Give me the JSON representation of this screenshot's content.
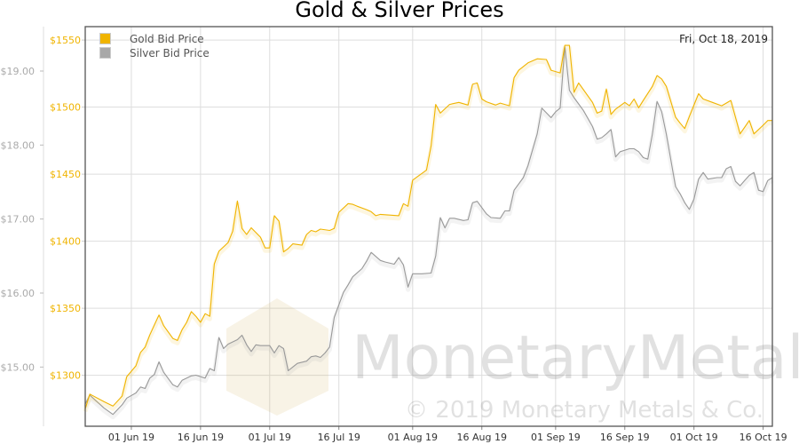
{
  "chart_data": {
    "type": "line",
    "title": "Gold & Silver Prices",
    "date_label": "Fri, Oct 18, 2019",
    "watermark": {
      "brand": "MonetaryMetals",
      "copyright": "© 2019 Monetary Metals & Co."
    },
    "xlim": [
      "2019-05-22",
      "2019-10-18"
    ],
    "x_ticks": [
      {
        "date": "2019-06-01",
        "label": "01 Jun 19"
      },
      {
        "date": "2019-06-16",
        "label": "16 Jun 19"
      },
      {
        "date": "2019-07-01",
        "label": "01 Jul 19"
      },
      {
        "date": "2019-07-16",
        "label": "16 Jul 19"
      },
      {
        "date": "2019-08-01",
        "label": "01 Aug 19"
      },
      {
        "date": "2019-08-16",
        "label": "16 Aug 19"
      },
      {
        "date": "2019-09-01",
        "label": "01 Sep 19"
      },
      {
        "date": "2019-09-16",
        "label": "16 Sep 19"
      },
      {
        "date": "2019-10-01",
        "label": "01 Oct 19"
      },
      {
        "date": "2019-10-16",
        "label": "16 Oct 19"
      }
    ],
    "gold_axis": {
      "ylim": [
        1262,
        1560
      ],
      "ticks": [
        1550,
        1500,
        1450,
        1400,
        1350,
        1300
      ],
      "labels": [
        "$1550",
        "$1500",
        "$1450",
        "$1400",
        "$1350",
        "$1300"
      ]
    },
    "silver_axis": {
      "ylim": [
        14.2,
        19.6
      ],
      "ticks": [
        19,
        18,
        17,
        16,
        15
      ],
      "labels": [
        "$19.00",
        "$18.00",
        "$17.00",
        "$16.00",
        "$15.00"
      ]
    },
    "grid": true,
    "legend_position": "top-left",
    "colors": {
      "gold": "#f0b400",
      "silver": "#a8a8a8"
    },
    "series": [
      {
        "name": "Gold Bid Price",
        "axis": "gold",
        "points": [
          [
            "2019-05-22",
            1275
          ],
          [
            "2019-05-23",
            1286
          ],
          [
            "2019-05-26",
            1280.5
          ],
          [
            "2019-05-28",
            1277
          ],
          [
            "2019-05-30",
            1284.5
          ],
          [
            "2019-05-31",
            1299
          ],
          [
            "2019-06-02",
            1307
          ],
          [
            "2019-06-03",
            1317
          ],
          [
            "2019-06-04",
            1321
          ],
          [
            "2019-06-05",
            1330
          ],
          [
            "2019-06-07",
            1345
          ],
          [
            "2019-06-08",
            1337
          ],
          [
            "2019-06-10",
            1327.5
          ],
          [
            "2019-06-11",
            1326
          ],
          [
            "2019-06-12",
            1334
          ],
          [
            "2019-06-13",
            1339.5
          ],
          [
            "2019-06-14",
            1347.5
          ],
          [
            "2019-06-15",
            1344
          ],
          [
            "2019-06-16",
            1339.5
          ],
          [
            "2019-06-17",
            1346
          ],
          [
            "2019-06-18",
            1344
          ],
          [
            "2019-06-19",
            1383
          ],
          [
            "2019-06-20",
            1392.5
          ],
          [
            "2019-06-22",
            1399
          ],
          [
            "2019-06-23",
            1407.5
          ],
          [
            "2019-06-24",
            1430
          ],
          [
            "2019-06-25",
            1409.5
          ],
          [
            "2019-06-26",
            1405
          ],
          [
            "2019-06-27",
            1410
          ],
          [
            "2019-06-29",
            1403
          ],
          [
            "2019-06-30",
            1395
          ],
          [
            "2019-07-01",
            1395
          ],
          [
            "2019-07-02",
            1419
          ],
          [
            "2019-07-03",
            1415
          ],
          [
            "2019-07-04",
            1392
          ],
          [
            "2019-07-05",
            1394.5
          ],
          [
            "2019-07-06",
            1398
          ],
          [
            "2019-07-08",
            1397
          ],
          [
            "2019-07-09",
            1405
          ],
          [
            "2019-07-10",
            1408
          ],
          [
            "2019-07-11",
            1407
          ],
          [
            "2019-07-12",
            1409
          ],
          [
            "2019-07-14",
            1408
          ],
          [
            "2019-07-15",
            1409.5
          ],
          [
            "2019-07-16",
            1421.5
          ],
          [
            "2019-07-18",
            1428
          ],
          [
            "2019-07-19",
            1427.5
          ],
          [
            "2019-07-20",
            1426
          ],
          [
            "2019-07-22",
            1423.5
          ],
          [
            "2019-07-23",
            1422
          ],
          [
            "2019-07-24",
            1419
          ],
          [
            "2019-07-25",
            1420
          ],
          [
            "2019-07-27",
            1419.5
          ],
          [
            "2019-07-29",
            1419
          ],
          [
            "2019-07-30",
            1428
          ],
          [
            "2019-07-31",
            1426
          ],
          [
            "2019-08-01",
            1445.5
          ],
          [
            "2019-08-02",
            1448
          ],
          [
            "2019-08-04",
            1453
          ],
          [
            "2019-08-05",
            1471
          ],
          [
            "2019-08-06",
            1502
          ],
          [
            "2019-08-07",
            1495.5
          ],
          [
            "2019-08-09",
            1502
          ],
          [
            "2019-08-11",
            1503.5
          ],
          [
            "2019-08-13",
            1501.5
          ],
          [
            "2019-08-14",
            1517
          ],
          [
            "2019-08-15",
            1518
          ],
          [
            "2019-08-16",
            1506
          ],
          [
            "2019-08-17",
            1504
          ],
          [
            "2019-08-19",
            1501.5
          ],
          [
            "2019-08-20",
            1503
          ],
          [
            "2019-08-22",
            1501
          ],
          [
            "2019-08-23",
            1522
          ],
          [
            "2019-08-24",
            1527.5
          ],
          [
            "2019-08-26",
            1533
          ],
          [
            "2019-08-28",
            1536
          ],
          [
            "2019-08-30",
            1535.5
          ],
          [
            "2019-08-31",
            1527.5
          ],
          [
            "2019-09-02",
            1525.5
          ],
          [
            "2019-09-03",
            1546
          ],
          [
            "2019-09-04",
            1546
          ],
          [
            "2019-09-05",
            1511
          ],
          [
            "2019-09-06",
            1518
          ],
          [
            "2019-09-09",
            1503.5
          ],
          [
            "2019-09-10",
            1495.5
          ],
          [
            "2019-09-11",
            1497
          ],
          [
            "2019-09-12",
            1513.5
          ],
          [
            "2019-09-13",
            1494.5
          ],
          [
            "2019-09-14",
            1498.5
          ],
          [
            "2019-09-16",
            1503.5
          ],
          [
            "2019-09-17",
            1501
          ],
          [
            "2019-09-18",
            1506
          ],
          [
            "2019-09-19",
            1499.5
          ],
          [
            "2019-09-20",
            1505
          ],
          [
            "2019-09-22",
            1515.5
          ],
          [
            "2019-09-23",
            1523.5
          ],
          [
            "2019-09-24",
            1521
          ],
          [
            "2019-09-25",
            1515.5
          ],
          [
            "2019-09-27",
            1492.5
          ],
          [
            "2019-09-28",
            1488
          ],
          [
            "2019-09-29",
            1484
          ],
          [
            "2019-09-30",
            1493
          ],
          [
            "2019-10-02",
            1510
          ],
          [
            "2019-10-03",
            1506
          ],
          [
            "2019-10-05",
            1503.5
          ],
          [
            "2019-10-07",
            1501
          ],
          [
            "2019-10-09",
            1505
          ],
          [
            "2019-10-11",
            1480
          ],
          [
            "2019-10-12",
            1485
          ],
          [
            "2019-10-13",
            1490
          ],
          [
            "2019-10-14",
            1480
          ],
          [
            "2019-10-16",
            1486.5
          ],
          [
            "2019-10-17",
            1490
          ],
          [
            "2019-10-18",
            1490
          ]
        ]
      },
      {
        "name": "Silver Bid Price",
        "axis": "silver",
        "points": [
          [
            "2019-05-22",
            14.5
          ],
          [
            "2019-05-23",
            14.62
          ],
          [
            "2019-05-26",
            14.45
          ],
          [
            "2019-05-28",
            14.36
          ],
          [
            "2019-05-30",
            14.49
          ],
          [
            "2019-05-31",
            14.58
          ],
          [
            "2019-06-02",
            14.65
          ],
          [
            "2019-06-03",
            14.73
          ],
          [
            "2019-06-04",
            14.71
          ],
          [
            "2019-06-05",
            14.85
          ],
          [
            "2019-06-06",
            14.9
          ],
          [
            "2019-06-07",
            15.07
          ],
          [
            "2019-06-08",
            14.93
          ],
          [
            "2019-06-10",
            14.76
          ],
          [
            "2019-06-11",
            14.73
          ],
          [
            "2019-06-12",
            14.82
          ],
          [
            "2019-06-14",
            14.88
          ],
          [
            "2019-06-15",
            14.89
          ],
          [
            "2019-06-17",
            14.85
          ],
          [
            "2019-06-18",
            14.98
          ],
          [
            "2019-06-19",
            14.95
          ],
          [
            "2019-06-20",
            15.4
          ],
          [
            "2019-06-21",
            15.25
          ],
          [
            "2019-06-22",
            15.31
          ],
          [
            "2019-06-24",
            15.37
          ],
          [
            "2019-06-25",
            15.43
          ],
          [
            "2019-06-26",
            15.3
          ],
          [
            "2019-06-27",
            15.21
          ],
          [
            "2019-06-28",
            15.3
          ],
          [
            "2019-06-29",
            15.29
          ],
          [
            "2019-07-01",
            15.29
          ],
          [
            "2019-07-02",
            15.19
          ],
          [
            "2019-07-03",
            15.29
          ],
          [
            "2019-07-04",
            15.25
          ],
          [
            "2019-07-05",
            14.95
          ],
          [
            "2019-07-06",
            15.0
          ],
          [
            "2019-07-07",
            15.05
          ],
          [
            "2019-07-09",
            15.08
          ],
          [
            "2019-07-10",
            15.14
          ],
          [
            "2019-07-11",
            15.15
          ],
          [
            "2019-07-12",
            15.13
          ],
          [
            "2019-07-13",
            15.19
          ],
          [
            "2019-07-14",
            15.27
          ],
          [
            "2019-07-15",
            15.67
          ],
          [
            "2019-07-17",
            16.01
          ],
          [
            "2019-07-18",
            16.11
          ],
          [
            "2019-07-19",
            16.22
          ],
          [
            "2019-07-21",
            16.33
          ],
          [
            "2019-07-22",
            16.43
          ],
          [
            "2019-07-23",
            16.55
          ],
          [
            "2019-07-25",
            16.44
          ],
          [
            "2019-07-26",
            16.42
          ],
          [
            "2019-07-28",
            16.39
          ],
          [
            "2019-07-29",
            16.48
          ],
          [
            "2019-07-30",
            16.38
          ],
          [
            "2019-07-31",
            16.08
          ],
          [
            "2019-08-01",
            16.26
          ],
          [
            "2019-08-03",
            16.26
          ],
          [
            "2019-08-05",
            16.27
          ],
          [
            "2019-08-06",
            16.5
          ],
          [
            "2019-08-07",
            17.02
          ],
          [
            "2019-08-08",
            16.88
          ],
          [
            "2019-08-09",
            17.01
          ],
          [
            "2019-08-10",
            17.01
          ],
          [
            "2019-08-12",
            16.98
          ],
          [
            "2019-08-13",
            16.99
          ],
          [
            "2019-08-14",
            17.22
          ],
          [
            "2019-08-15",
            17.24
          ],
          [
            "2019-08-17",
            17.07
          ],
          [
            "2019-08-18",
            17.02
          ],
          [
            "2019-08-20",
            17.01
          ],
          [
            "2019-08-21",
            17.11
          ],
          [
            "2019-08-22",
            17.11
          ],
          [
            "2019-08-23",
            17.39
          ],
          [
            "2019-08-25",
            17.56
          ],
          [
            "2019-08-26",
            17.72
          ],
          [
            "2019-08-28",
            18.15
          ],
          [
            "2019-08-29",
            18.5
          ],
          [
            "2019-08-31",
            18.37
          ],
          [
            "2019-09-01",
            18.45
          ],
          [
            "2019-09-02",
            18.5
          ],
          [
            "2019-09-03",
            19.33
          ],
          [
            "2019-09-04",
            18.74
          ],
          [
            "2019-09-05",
            18.64
          ],
          [
            "2019-09-07",
            18.47
          ],
          [
            "2019-09-09",
            18.25
          ],
          [
            "2019-09-10",
            18.08
          ],
          [
            "2019-09-11",
            18.1
          ],
          [
            "2019-09-12",
            18.15
          ],
          [
            "2019-09-13",
            18.21
          ],
          [
            "2019-09-14",
            17.84
          ],
          [
            "2019-09-15",
            17.91
          ],
          [
            "2019-09-17",
            17.95
          ],
          [
            "2019-09-18",
            17.95
          ],
          [
            "2019-09-19",
            17.91
          ],
          [
            "2019-09-20",
            17.83
          ],
          [
            "2019-09-21",
            17.81
          ],
          [
            "2019-09-22",
            18.15
          ],
          [
            "2019-09-23",
            18.59
          ],
          [
            "2019-09-24",
            18.45
          ],
          [
            "2019-09-25",
            18.15
          ],
          [
            "2019-09-27",
            17.44
          ],
          [
            "2019-09-28",
            17.34
          ],
          [
            "2019-09-29",
            17.22
          ],
          [
            "2019-09-30",
            17.13
          ],
          [
            "2019-10-01",
            17.27
          ],
          [
            "2019-10-02",
            17.54
          ],
          [
            "2019-10-03",
            17.63
          ],
          [
            "2019-10-04",
            17.54
          ],
          [
            "2019-10-06",
            17.56
          ],
          [
            "2019-10-07",
            17.56
          ],
          [
            "2019-10-08",
            17.68
          ],
          [
            "2019-10-09",
            17.71
          ],
          [
            "2019-10-10",
            17.51
          ],
          [
            "2019-10-11",
            17.45
          ],
          [
            "2019-10-12",
            17.52
          ],
          [
            "2019-10-13",
            17.59
          ],
          [
            "2019-10-14",
            17.63
          ],
          [
            "2019-10-15",
            17.39
          ],
          [
            "2019-10-16",
            17.37
          ],
          [
            "2019-10-17",
            17.52
          ],
          [
            "2019-10-18",
            17.56
          ]
        ]
      }
    ]
  }
}
